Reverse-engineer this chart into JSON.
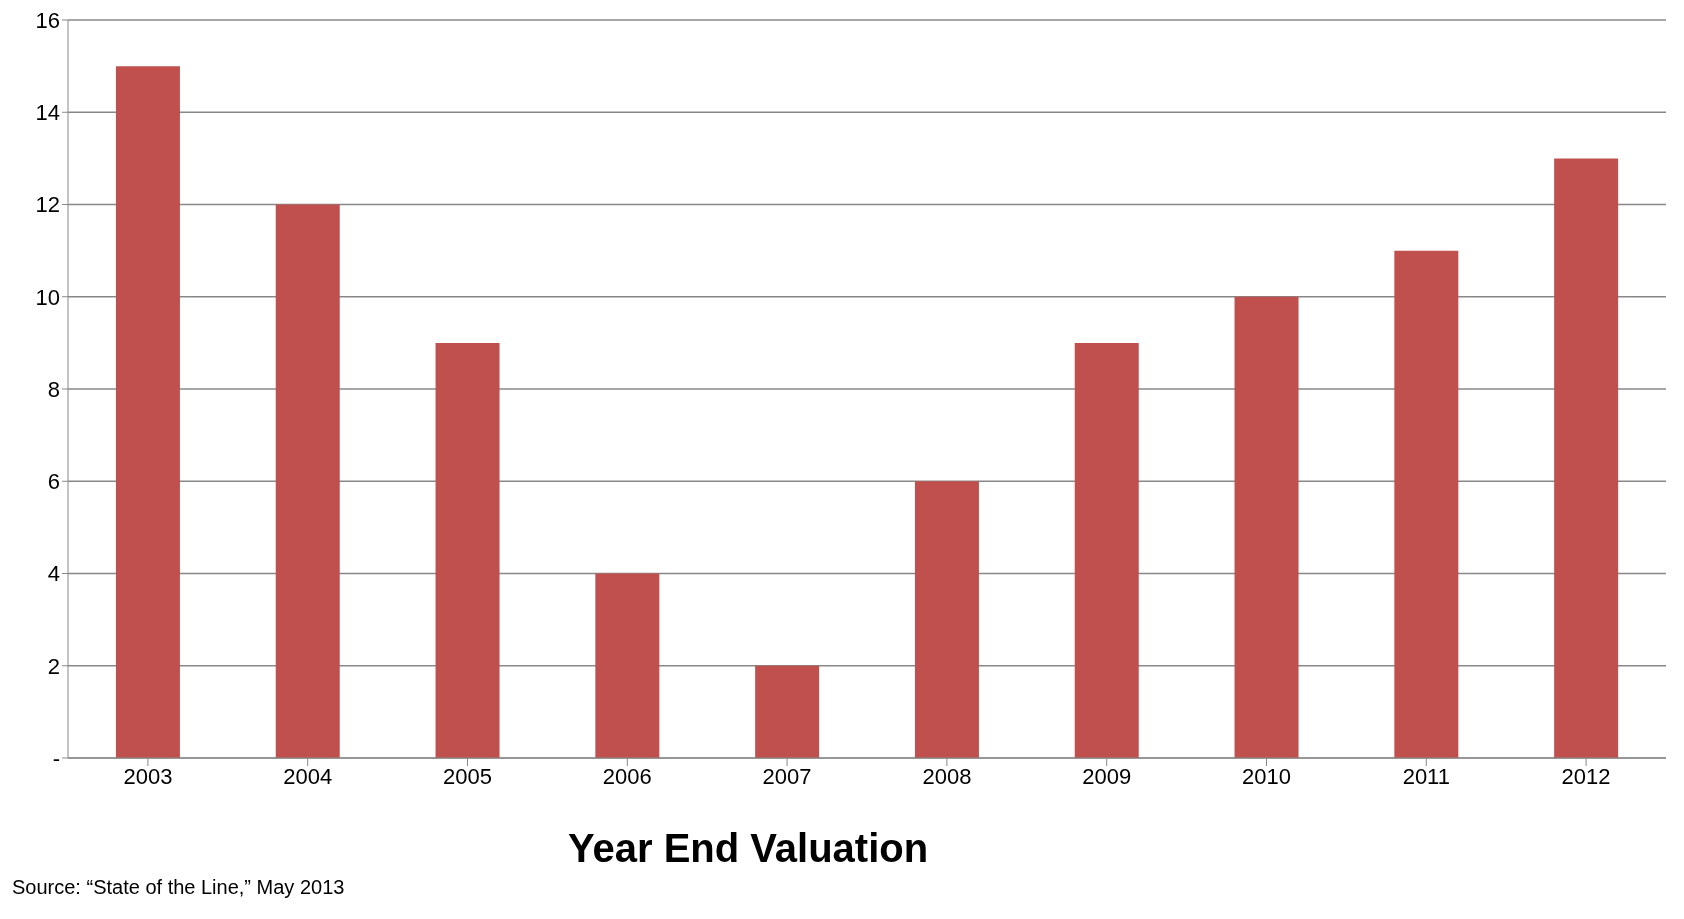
{
  "chart_data": {
    "type": "bar",
    "xlabel": "Year End Valuation",
    "categories": [
      "2003",
      "2004",
      "2005",
      "2006",
      "2007",
      "2008",
      "2009",
      "2010",
      "2011",
      "2012"
    ],
    "values": [
      15,
      12,
      9,
      4,
      2,
      6,
      9,
      10,
      11,
      13
    ],
    "color": "#c0504d",
    "ylim": [
      0,
      16
    ],
    "yticks": [
      {
        "value": 0,
        "label": "-"
      },
      2,
      4,
      6,
      8,
      10,
      12,
      14,
      16
    ],
    "grid": "y",
    "annotations": [
      "Source: “State of the Line,” May 2013"
    ]
  }
}
